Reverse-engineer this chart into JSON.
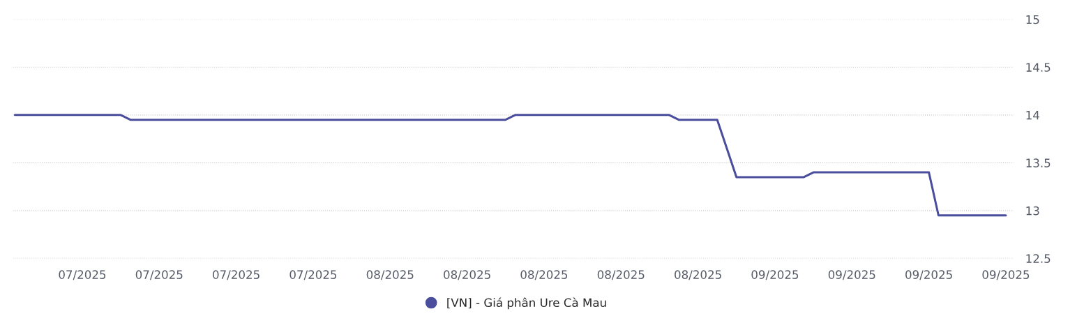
{
  "chart_data": {
    "type": "line",
    "categories": [
      null,
      null,
      null,
      null,
      null,
      null,
      null,
      "07/2025",
      null,
      null,
      null,
      null,
      null,
      null,
      null,
      "07/2025",
      null,
      null,
      null,
      null,
      null,
      null,
      null,
      "07/2025",
      null,
      null,
      null,
      null,
      null,
      null,
      null,
      "07/2025",
      null,
      null,
      null,
      null,
      null,
      null,
      null,
      "08/2025",
      null,
      null,
      null,
      null,
      null,
      null,
      null,
      "08/2025",
      null,
      null,
      null,
      null,
      null,
      null,
      null,
      "08/2025",
      null,
      null,
      null,
      null,
      null,
      null,
      null,
      "08/2025",
      null,
      null,
      null,
      null,
      null,
      null,
      null,
      "08/2025",
      null,
      null,
      null,
      null,
      null,
      null,
      null,
      "09/2025",
      null,
      null,
      null,
      null,
      null,
      null,
      null,
      "09/2025",
      null,
      null,
      null,
      null,
      null,
      null,
      null,
      "09/2025",
      null,
      null,
      null,
      null,
      null,
      null,
      null,
      "09/2025"
    ],
    "series": [
      {
        "name": "[VN] - Giá phân Ure Cà Mau",
        "color": "#4a4e9c",
        "values": [
          14,
          14,
          14,
          14,
          14,
          14,
          14,
          14,
          14,
          14,
          14,
          14,
          13.95,
          13.95,
          13.95,
          13.95,
          13.95,
          13.95,
          13.95,
          13.95,
          13.95,
          13.95,
          13.95,
          13.95,
          13.95,
          13.95,
          13.95,
          13.95,
          13.95,
          13.95,
          13.95,
          13.95,
          13.95,
          13.95,
          13.95,
          13.95,
          13.95,
          13.95,
          13.95,
          13.95,
          13.95,
          13.95,
          13.95,
          13.95,
          13.95,
          13.95,
          13.95,
          13.95,
          13.95,
          13.95,
          13.95,
          13.95,
          14,
          14,
          14,
          14,
          14,
          14,
          14,
          14,
          14,
          14,
          14,
          14,
          14,
          14,
          14,
          14,
          14,
          13.95,
          13.95,
          13.95,
          13.95,
          13.95,
          13.65,
          13.35,
          13.35,
          13.35,
          13.35,
          13.35,
          13.35,
          13.35,
          13.35,
          13.4,
          13.4,
          13.4,
          13.4,
          13.4,
          13.4,
          13.4,
          13.4,
          13.4,
          13.4,
          13.4,
          13.4,
          13.4,
          12.95,
          12.95,
          12.95,
          12.95,
          12.95,
          12.95,
          12.95,
          12.95
        ]
      }
    ],
    "ylim": [
      12.5,
      15
    ],
    "yticks": [
      12.5,
      13,
      13.5,
      14,
      14.5,
      15
    ],
    "grid": "y",
    "legend": "bottom",
    "marker": "none",
    "line_style": "solid"
  }
}
